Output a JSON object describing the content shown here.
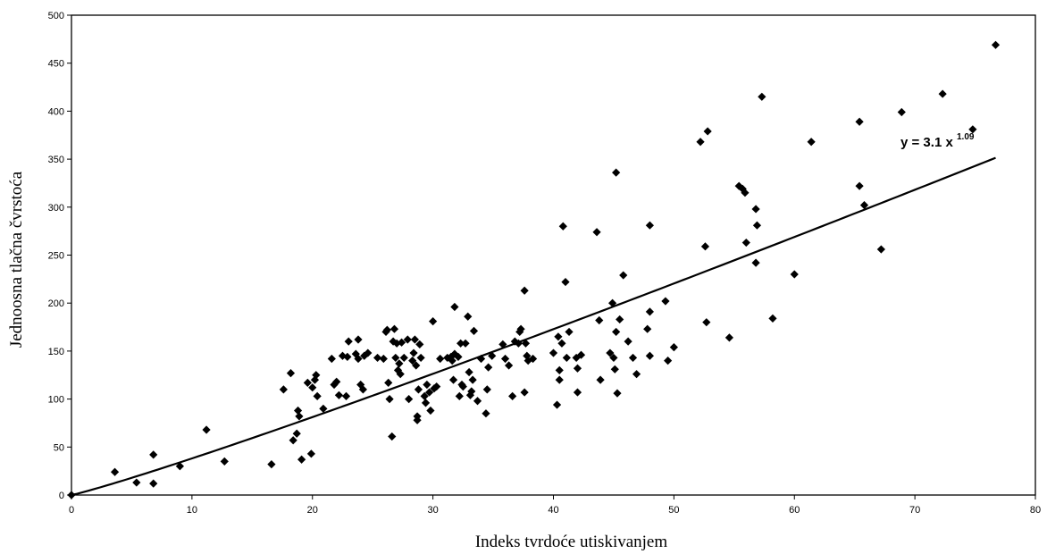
{
  "chart_data": {
    "type": "scatter",
    "xlabel": "Indeks tvrdoće utiskivanjem",
    "ylabel": "Jednoosna tlačna čvrstoća",
    "xlim": [
      0,
      80
    ],
    "ylim": [
      0,
      500
    ],
    "x_ticks": [
      "0",
      "10",
      "20",
      "30",
      "40",
      "50",
      "60",
      "70",
      "80"
    ],
    "y_ticks": [
      "0",
      "50",
      "100",
      "150",
      "200",
      "250",
      "300",
      "350",
      "400",
      "450",
      "500"
    ],
    "grid": false,
    "marker_color": "#000000",
    "marker": "diamond",
    "trendline": {
      "type": "power",
      "a": 3.1,
      "b": 1.09,
      "x_range": [
        0,
        76.7
      ],
      "equation_prefix": "y = 3.1 x",
      "equation_exponent": "1.09"
    },
    "points": [
      [
        0,
        0
      ],
      [
        3.6,
        24
      ],
      [
        5.4,
        13
      ],
      [
        6.8,
        12
      ],
      [
        6.8,
        42
      ],
      [
        9.0,
        30
      ],
      [
        11.2,
        68
      ],
      [
        12.7,
        35
      ],
      [
        16.6,
        32
      ],
      [
        17.6,
        110
      ],
      [
        18.2,
        127
      ],
      [
        18.4,
        57
      ],
      [
        18.7,
        64
      ],
      [
        18.8,
        88
      ],
      [
        18.9,
        82
      ],
      [
        19.1,
        37
      ],
      [
        19.6,
        117
      ],
      [
        19.9,
        43
      ],
      [
        20.0,
        112
      ],
      [
        20.2,
        120
      ],
      [
        20.3,
        125
      ],
      [
        20.4,
        103
      ],
      [
        20.9,
        90
      ],
      [
        21.6,
        142
      ],
      [
        21.8,
        115
      ],
      [
        22.0,
        118
      ],
      [
        22.2,
        104
      ],
      [
        22.5,
        145
      ],
      [
        22.8,
        103
      ],
      [
        22.9,
        144
      ],
      [
        23.0,
        160
      ],
      [
        23.6,
        147
      ],
      [
        23.8,
        162
      ],
      [
        23.8,
        142
      ],
      [
        24.0,
        115
      ],
      [
        24.2,
        110
      ],
      [
        24.3,
        145
      ],
      [
        24.6,
        148
      ],
      [
        25.4,
        143
      ],
      [
        25.9,
        142
      ],
      [
        26.1,
        170
      ],
      [
        26.2,
        172
      ],
      [
        26.3,
        117
      ],
      [
        26.4,
        100
      ],
      [
        26.6,
        61
      ],
      [
        26.7,
        160
      ],
      [
        26.8,
        173
      ],
      [
        26.9,
        143
      ],
      [
        27.0,
        158
      ],
      [
        27.1,
        130
      ],
      [
        27.2,
        137
      ],
      [
        27.3,
        126
      ],
      [
        27.4,
        159
      ],
      [
        27.6,
        143
      ],
      [
        27.9,
        162
      ],
      [
        28.0,
        100
      ],
      [
        28.3,
        140
      ],
      [
        28.4,
        148
      ],
      [
        28.5,
        162
      ],
      [
        28.6,
        135
      ],
      [
        28.7,
        78
      ],
      [
        28.7,
        82
      ],
      [
        28.8,
        110
      ],
      [
        28.9,
        157
      ],
      [
        29.0,
        143
      ],
      [
        29.3,
        103
      ],
      [
        29.4,
        96
      ],
      [
        29.5,
        115
      ],
      [
        29.7,
        107
      ],
      [
        29.8,
        88
      ],
      [
        30.0,
        181
      ],
      [
        30.1,
        111
      ],
      [
        30.3,
        113
      ],
      [
        30.6,
        142
      ],
      [
        31.2,
        143
      ],
      [
        31.5,
        144
      ],
      [
        31.6,
        140
      ],
      [
        31.7,
        120
      ],
      [
        31.8,
        196
      ],
      [
        31.8,
        147
      ],
      [
        32.1,
        144
      ],
      [
        32.2,
        103
      ],
      [
        32.3,
        158
      ],
      [
        32.4,
        115
      ],
      [
        32.5,
        113
      ],
      [
        32.7,
        158
      ],
      [
        32.9,
        186
      ],
      [
        33.0,
        128
      ],
      [
        33.1,
        104
      ],
      [
        33.2,
        108
      ],
      [
        33.3,
        120
      ],
      [
        33.4,
        171
      ],
      [
        33.7,
        98
      ],
      [
        34.0,
        142
      ],
      [
        34.4,
        85
      ],
      [
        34.5,
        110
      ],
      [
        34.6,
        133
      ],
      [
        34.9,
        145
      ],
      [
        35.8,
        157
      ],
      [
        36.0,
        142
      ],
      [
        36.3,
        135
      ],
      [
        36.6,
        103
      ],
      [
        36.8,
        160
      ],
      [
        37.1,
        158
      ],
      [
        37.2,
        170
      ],
      [
        37.3,
        173
      ],
      [
        37.6,
        213
      ],
      [
        37.6,
        107
      ],
      [
        37.7,
        158
      ],
      [
        37.8,
        145
      ],
      [
        37.9,
        140
      ],
      [
        38.3,
        142
      ],
      [
        40.0,
        148
      ],
      [
        40.3,
        94
      ],
      [
        40.4,
        165
      ],
      [
        40.5,
        130
      ],
      [
        40.5,
        120
      ],
      [
        40.7,
        158
      ],
      [
        40.8,
        280
      ],
      [
        41.0,
        222
      ],
      [
        41.1,
        143
      ],
      [
        41.3,
        170
      ],
      [
        41.9,
        143
      ],
      [
        42.0,
        132
      ],
      [
        42.0,
        107
      ],
      [
        42.3,
        146
      ],
      [
        43.6,
        274
      ],
      [
        43.8,
        182
      ],
      [
        43.9,
        120
      ],
      [
        44.7,
        148
      ],
      [
        44.9,
        200
      ],
      [
        45.0,
        143
      ],
      [
        45.1,
        131
      ],
      [
        45.2,
        170
      ],
      [
        45.2,
        336
      ],
      [
        45.3,
        106
      ],
      [
        45.5,
        183
      ],
      [
        45.8,
        229
      ],
      [
        46.2,
        160
      ],
      [
        46.6,
        143
      ],
      [
        46.9,
        126
      ],
      [
        47.8,
        173
      ],
      [
        48.0,
        281
      ],
      [
        48.0,
        191
      ],
      [
        48.0,
        145
      ],
      [
        49.3,
        202
      ],
      [
        49.5,
        140
      ],
      [
        50.0,
        154
      ],
      [
        52.2,
        368
      ],
      [
        52.6,
        259
      ],
      [
        52.7,
        180
      ],
      [
        52.8,
        379
      ],
      [
        54.6,
        164
      ],
      [
        55.4,
        322
      ],
      [
        55.7,
        319
      ],
      [
        55.9,
        315
      ],
      [
        56.0,
        263
      ],
      [
        56.8,
        298
      ],
      [
        56.8,
        242
      ],
      [
        56.9,
        281
      ],
      [
        57.3,
        415
      ],
      [
        58.2,
        184
      ],
      [
        60.0,
        230
      ],
      [
        61.4,
        368
      ],
      [
        65.4,
        389
      ],
      [
        65.4,
        322
      ],
      [
        65.8,
        302
      ],
      [
        67.2,
        256
      ],
      [
        68.9,
        399
      ],
      [
        72.3,
        418
      ],
      [
        74.8,
        381
      ],
      [
        76.7,
        469
      ]
    ]
  }
}
